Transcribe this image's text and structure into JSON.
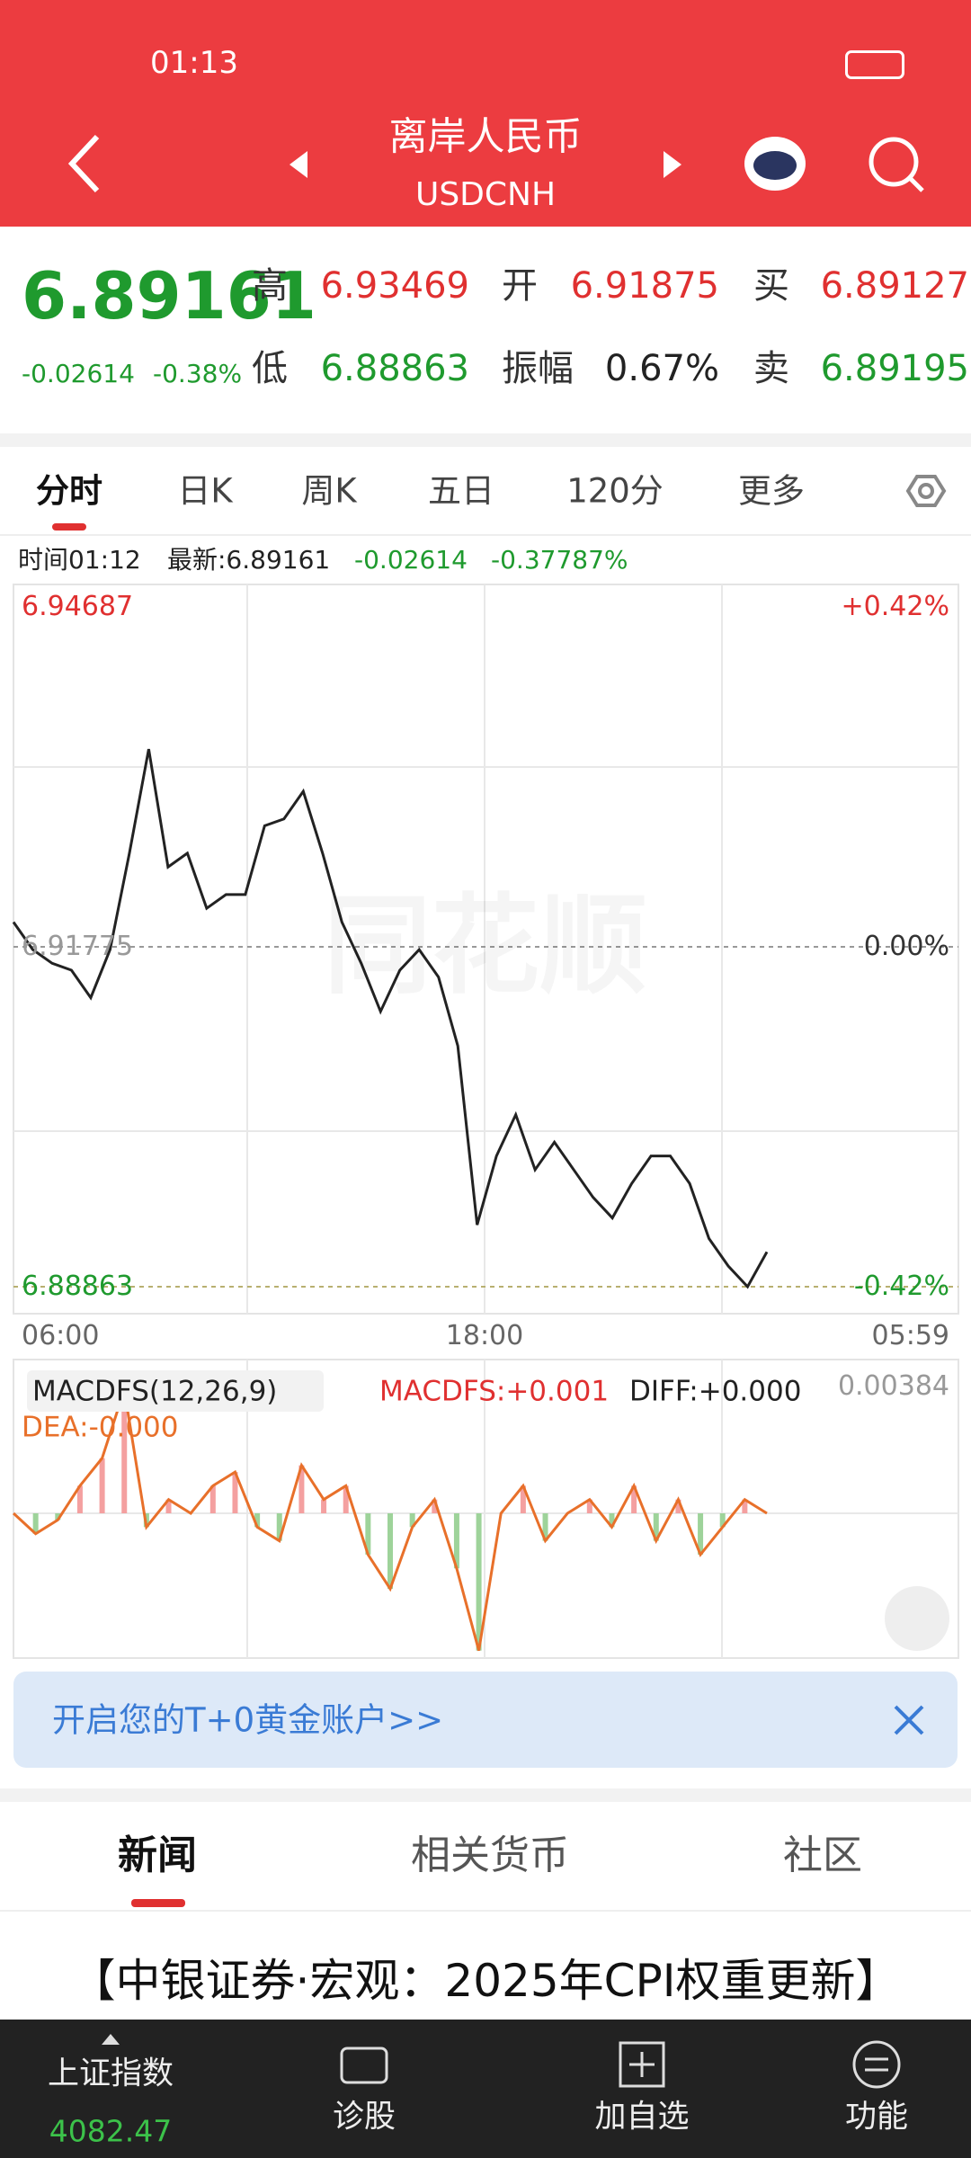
{
  "status": {
    "time": "01:13"
  },
  "header": {
    "title": "离岸人民币",
    "code": "USDCNH"
  },
  "quote": {
    "price": "6.89161",
    "change": "-0.02614",
    "change_pct": "-0.38%",
    "fields": [
      {
        "label": "高",
        "value": "6.93469"
      },
      {
        "label": "开",
        "value": "6.91875"
      },
      {
        "label": "买",
        "value": "6.89127"
      },
      {
        "label": "低",
        "value": "6.88863"
      },
      {
        "label": "振幅",
        "value": "0.67%"
      },
      {
        "label": "卖",
        "value": "6.89195"
      }
    ]
  },
  "tabs": [
    "分时",
    "日K",
    "周K",
    "五日",
    "120分",
    "更多"
  ],
  "info_bar": {
    "time": "时间01:12",
    "latest": "最新:6.89161",
    "change": "-0.02614",
    "pct": "-0.37787%"
  },
  "chart": {
    "type": "line",
    "watermark": "同花顺",
    "ylim": [
      6.88863,
      6.94687
    ],
    "yticks": [
      6.88863,
      6.91775,
      6.94687
    ],
    "right_labels": [
      "-0.42%",
      "0.00%",
      "+0.42%"
    ],
    "x_labels": [
      "06:00",
      "18:00",
      "05:59"
    ],
    "values": [
      6.91987,
      6.91751,
      6.91634,
      6.91575,
      6.91339,
      6.91751,
      6.92577,
      6.93469,
      6.92459,
      6.92577,
      6.92105,
      6.92223,
      6.92223,
      6.92812,
      6.92871,
      6.93107,
      6.92577,
      6.91987,
      6.91634,
      6.91221,
      6.91575,
      6.91751,
      6.91516,
      6.90926,
      6.89393,
      6.89983,
      6.90337,
      6.89865,
      6.90101,
      6.89865,
      6.89629,
      6.89452,
      6.89747,
      6.89983,
      6.89983,
      6.89747,
      6.89276,
      6.8904,
      6.88863,
      6.89161
    ]
  },
  "macd": {
    "indicator": "MACDFS(12,26,9)",
    "macdfs": "MACDFS:+0.001",
    "diff": "DIFF:+0.000",
    "dea": "DEA:-0.000",
    "top_label": "0.00384",
    "ylim": [
      -0.00384,
      0.00384
    ],
    "values": [
      0,
      -0.00052,
      -0.00017,
      0.0007,
      0.0014,
      0.00314,
      -0.00035,
      0.00035,
      0,
      0.0007,
      0.00105,
      -0.00035,
      -0.0007,
      0.00122,
      0.00035,
      0.0007,
      -0.00105,
      -0.00192,
      -0.00035,
      0.00035,
      -0.0014,
      -0.00349,
      0,
      0.0007,
      -0.0007,
      0,
      0.00035,
      -0.00035,
      0.0007,
      -0.0007,
      0.00035,
      -0.00105,
      -0.00035,
      0.00035,
      0
    ]
  },
  "banner": {
    "text": "开启您的T+0黄金账户>>"
  },
  "news_tabs": [
    "新闻",
    "相关货币",
    "社区"
  ],
  "headline": "【中银证券·宏观：2025年CPI权重更新】",
  "bottom_nav": {
    "index_name": "上证指数",
    "index_value": "4082.47",
    "items": [
      "诊股",
      "加自选",
      "功能"
    ]
  }
}
